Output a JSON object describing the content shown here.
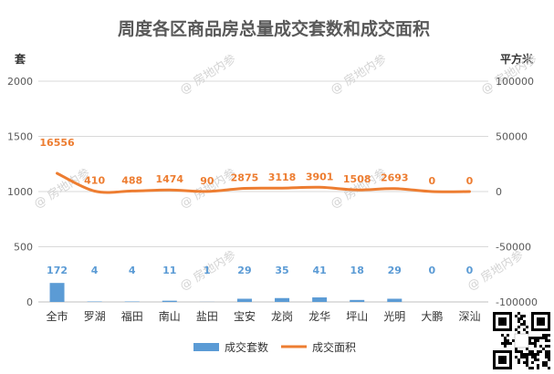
{
  "chart_data": {
    "type": "bar",
    "title": "周度各区商品房总量成交套数和成交面积",
    "left_axis_unit": "套",
    "right_axis_unit": "平方米",
    "categories": [
      "全市",
      "罗湖",
      "福田",
      "南山",
      "盐田",
      "宝安",
      "龙岗",
      "龙华",
      "坪山",
      "光明",
      "大鹏",
      "深汕"
    ],
    "left_axis": {
      "range": [
        0,
        2000
      ],
      "ticks": [
        "0",
        "500",
        "1000",
        "1500",
        "2000"
      ]
    },
    "right_axis": {
      "range": [
        -100000,
        100000
      ],
      "ticks": [
        "-100000",
        "-50000",
        "0",
        "50000",
        "100000"
      ]
    },
    "gridlines": true,
    "legend_position": "bottom",
    "series": [
      {
        "name": "成交套数",
        "type": "bar",
        "axis": "left",
        "color": "#5b9bd5",
        "values": [
          172,
          4,
          4,
          11,
          1,
          29,
          35,
          41,
          18,
          29,
          0,
          0
        ],
        "labels": [
          "172",
          "4",
          "4",
          "11",
          "1",
          "29",
          "35",
          "41",
          "18",
          "29",
          "0",
          "0"
        ]
      },
      {
        "name": "成交面积",
        "type": "line",
        "axis": "right",
        "color": "#ed7d31",
        "values": [
          16556,
          410,
          488,
          1474,
          90,
          2875,
          3118,
          3901,
          1508,
          2693,
          0,
          0
        ],
        "labels": [
          "16556",
          "410",
          "488",
          "1474",
          "90",
          "2875",
          "3118",
          "3901",
          "1508",
          "2693",
          "0",
          "0"
        ]
      }
    ]
  },
  "watermark_text": "房地内参"
}
